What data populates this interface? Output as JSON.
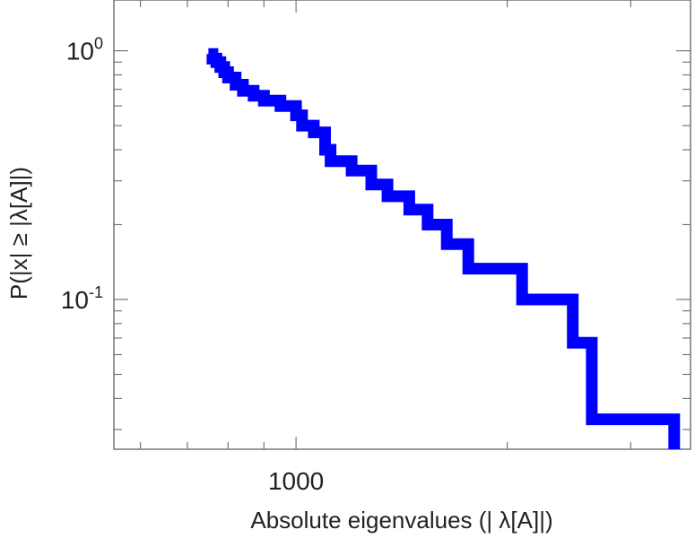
{
  "chart_data": {
    "type": "line",
    "xlabel": "Absolute eigenvalues (|     λ[A]|)",
    "ylabel": "P(|x|  ≥ |λ[A]|)",
    "x_scale": "log",
    "y_scale": "log",
    "xlim": [
      550,
      3650
    ],
    "ylim": [
      0.025,
      1.6
    ],
    "x_ticks": [
      {
        "value": 1000,
        "label": "1000"
      }
    ],
    "y_ticks": [
      {
        "value": 1,
        "base": "10",
        "exp": "0"
      },
      {
        "value": 0.1,
        "base": "10",
        "exp": "-1"
      }
    ],
    "grid": false,
    "series_color": "#0000ff",
    "series": [
      {
        "step": "post",
        "x": [
          750,
          760,
          770,
          780,
          790,
          800,
          820,
          840,
          870,
          900,
          950,
          1000,
          1020,
          1060,
          1100,
          1120,
          1200,
          1280,
          1350,
          1450,
          1540,
          1640,
          1760,
          2100,
          2480,
          2640,
          3460
        ],
        "values": [
          0.97,
          0.93,
          0.9,
          0.86,
          0.82,
          0.78,
          0.73,
          0.69,
          0.66,
          0.63,
          0.6,
          0.55,
          0.5,
          0.47,
          0.4,
          0.36,
          0.33,
          0.29,
          0.26,
          0.23,
          0.2,
          0.167,
          0.133,
          0.1,
          0.067,
          0.033,
          0.025
        ]
      }
    ]
  }
}
